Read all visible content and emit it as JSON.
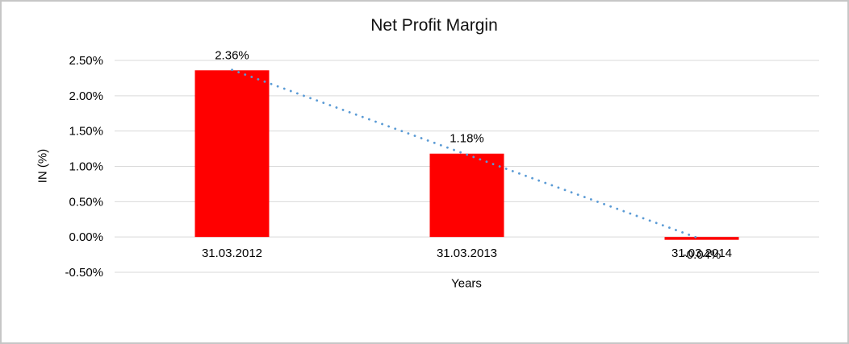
{
  "window": {
    "background_color": "#ffffff",
    "border_color": "#c6c6c6"
  },
  "chart_data": {
    "type": "bar",
    "title": "Net Profit Margin",
    "xlabel": "Years",
    "ylabel": "IN (%)",
    "categories": [
      "31.03.2012",
      "31.03.2013",
      "31.03.2014"
    ],
    "values": [
      2.36,
      1.18,
      -0.04
    ],
    "data_labels": [
      "2.36%",
      "1.18%",
      "-0.04%"
    ],
    "y_ticks": [
      "2.50%",
      "2.00%",
      "1.50%",
      "1.00%",
      "0.50%",
      "0.00%",
      "-0.50%"
    ],
    "y_tick_values": [
      2.5,
      2.0,
      1.5,
      1.0,
      0.5,
      0.0,
      -0.5
    ],
    "ylim": [
      -0.5,
      2.5
    ],
    "grid": true,
    "legend": false,
    "bar_color": "#FF0000",
    "gridline_color": "#D9D9D9",
    "trendline": {
      "type": "linear",
      "style": "dotted",
      "color": "#5B9BD5",
      "endpoint_values": [
        2.3667,
        -0.0333
      ]
    }
  }
}
